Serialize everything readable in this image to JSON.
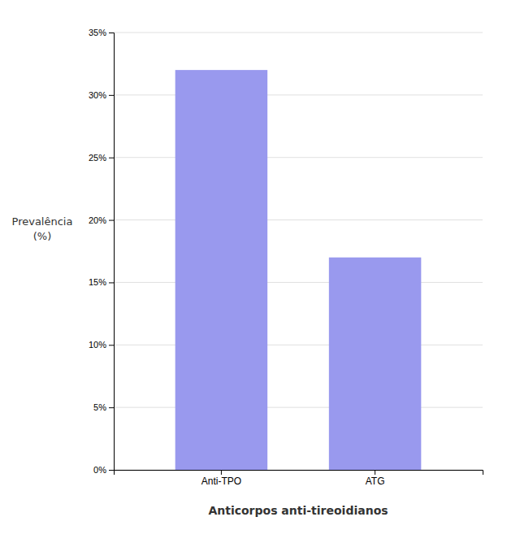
{
  "chart_data": {
    "type": "bar",
    "categories": [
      "Anti-TPO",
      "ATG"
    ],
    "values": [
      32,
      17
    ],
    "color": "#9999EE",
    "xlabel": "Anticorpos anti-tireoidianos",
    "ylabel": [
      "Prevalência",
      "(%)"
    ],
    "ylim": [
      0,
      35
    ],
    "yticks": [
      {
        "value": 0,
        "label": "0%"
      },
      {
        "value": 5,
        "label": "5%"
      },
      {
        "value": 10,
        "label": "10%"
      },
      {
        "value": 15,
        "label": "15%"
      },
      {
        "value": 20,
        "label": "20%"
      },
      {
        "value": 25,
        "label": "25%"
      },
      {
        "value": 30,
        "label": "30%"
      },
      {
        "value": 35,
        "label": "35%"
      }
    ],
    "grid": true
  }
}
